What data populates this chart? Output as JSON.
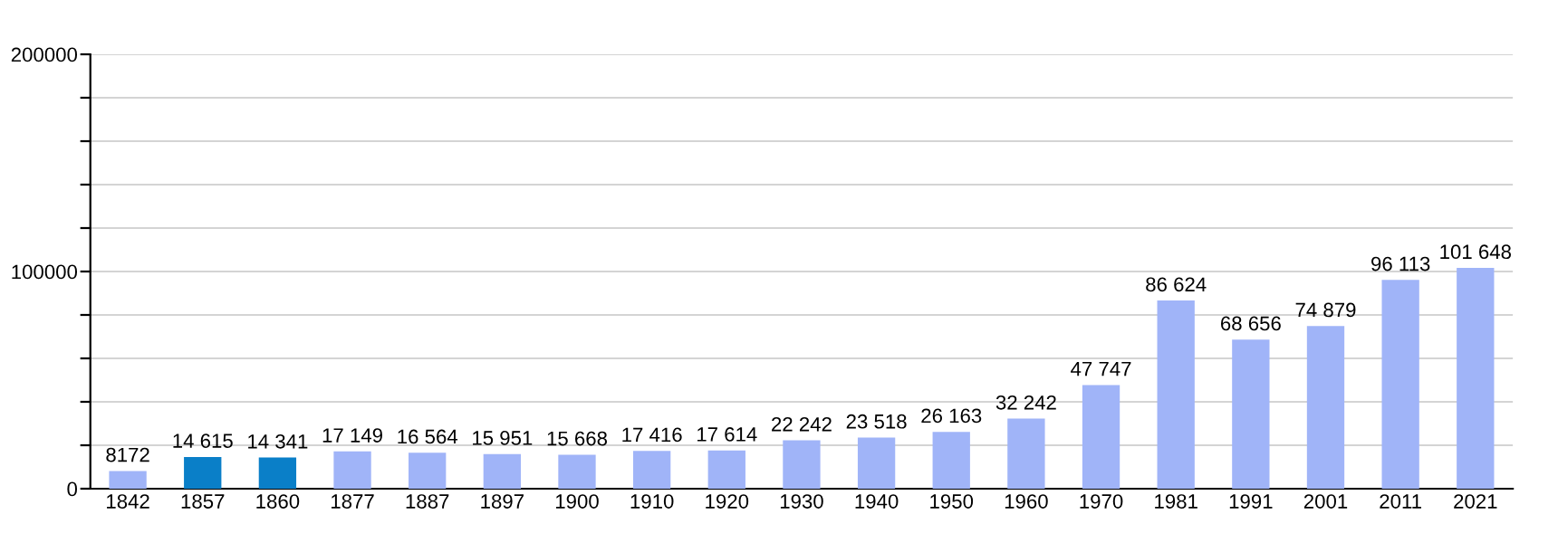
{
  "chart_data": {
    "type": "bar",
    "categories": [
      "1842",
      "1857",
      "1860",
      "1877",
      "1887",
      "1897",
      "1900",
      "1910",
      "1920",
      "1930",
      "1940",
      "1950",
      "1960",
      "1970",
      "1981",
      "1991",
      "2001",
      "2011",
      "2021"
    ],
    "values": [
      8172,
      14615,
      14341,
      17149,
      16564,
      15951,
      15668,
      17416,
      17614,
      22242,
      23518,
      26163,
      32242,
      47747,
      86624,
      68656,
      74879,
      96113,
      101648
    ],
    "value_labels": [
      "8172",
      "14 615",
      "14 341",
      "17 149",
      "16 564",
      "15 951",
      "15 668",
      "17 416",
      "17 614",
      "22 242",
      "23 518",
      "26 163",
      "32 242",
      "47 747",
      "86 624",
      "68 656",
      "74 879",
      "96 113",
      "101 648"
    ],
    "colors": [
      "#a0b4f8",
      "#0a7fc8",
      "#0a7fc8",
      "#a0b4f8",
      "#a0b4f8",
      "#a0b4f8",
      "#a0b4f8",
      "#a0b4f8",
      "#a0b4f8",
      "#a0b4f8",
      "#a0b4f8",
      "#a0b4f8",
      "#a0b4f8",
      "#a0b4f8",
      "#a0b4f8",
      "#a0b4f8",
      "#a0b4f8",
      "#a0b4f8",
      "#a0b4f8"
    ],
    "ylim": [
      0,
      200000
    ],
    "yticks": [
      0,
      {
        "value": 20000,
        "label": null
      },
      {
        "value": 40000,
        "label": null
      },
      {
        "value": 60000,
        "label": null
      },
      {
        "value": 80000,
        "label": null
      },
      100000,
      {
        "value": 120000,
        "label": null
      },
      {
        "value": 140000,
        "label": null
      },
      {
        "value": 160000,
        "label": null
      },
      {
        "value": 180000,
        "label": null
      },
      200000
    ],
    "grid": "y"
  }
}
